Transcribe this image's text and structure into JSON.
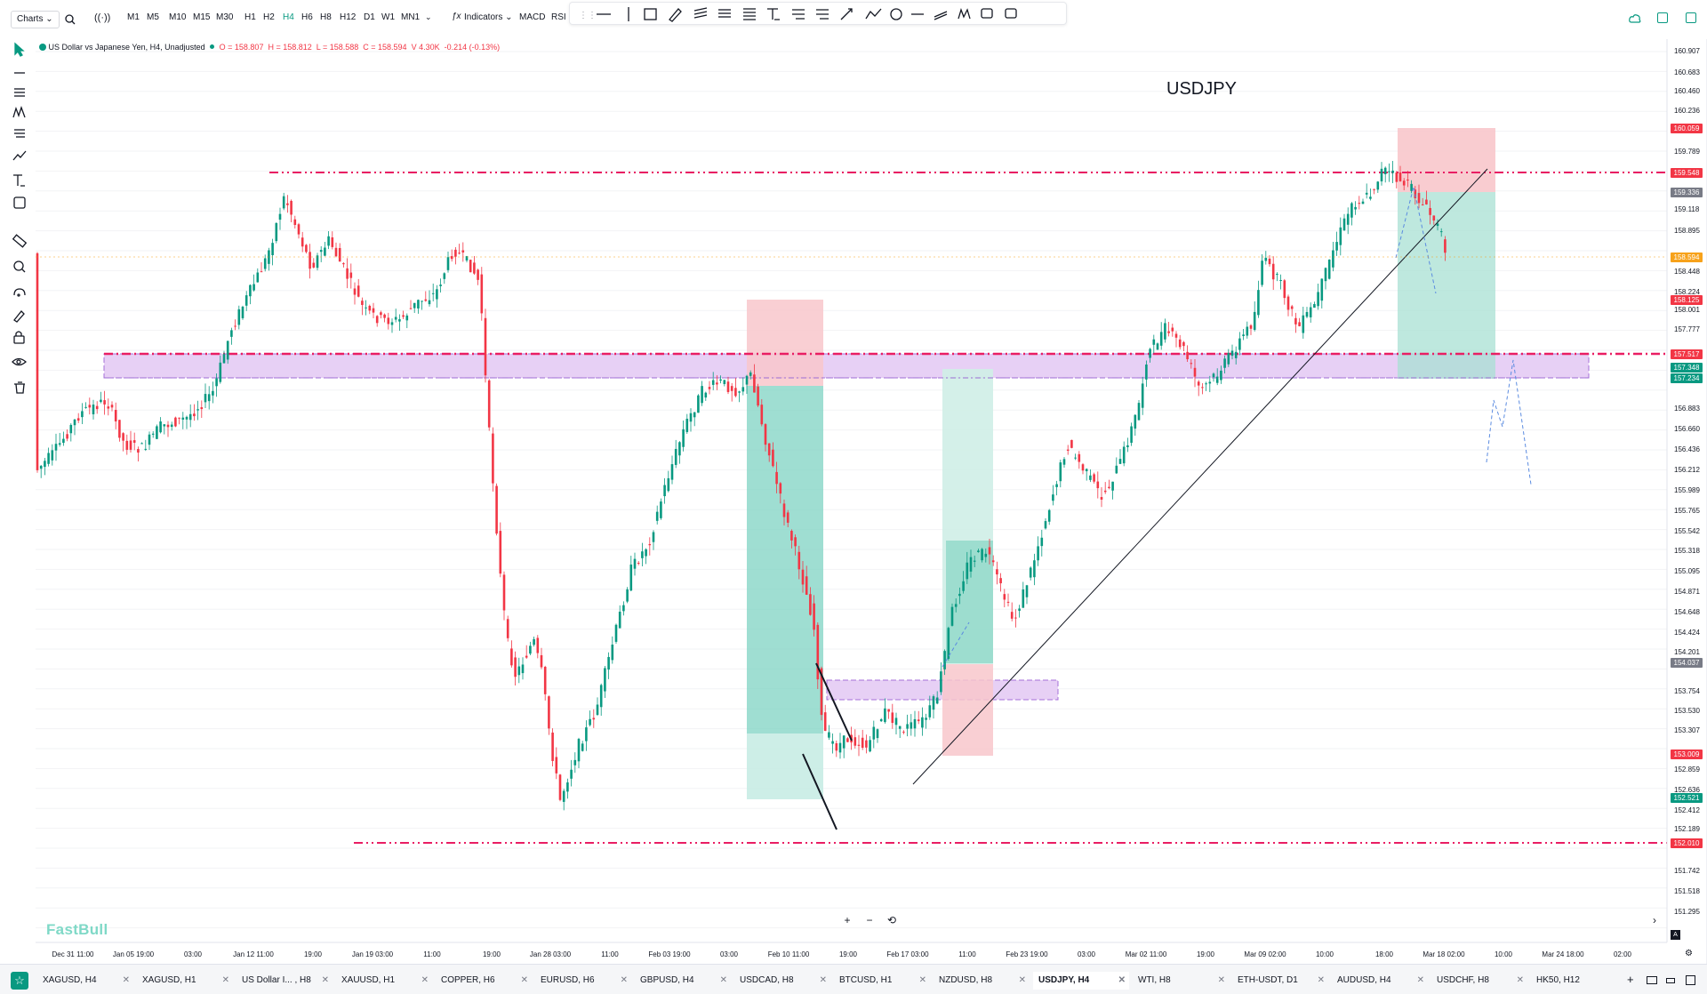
{
  "topbar": {
    "charts_label": "Charts ⌄",
    "timeframes": [
      "M1",
      "M5",
      "M10",
      "M15",
      "M30",
      "H1",
      "H2",
      "H4",
      "H6",
      "H8",
      "H12",
      "D1",
      "W1",
      "MN1"
    ],
    "active_timeframe": "H4",
    "indicators_label": "Indicators ⌄",
    "studies": [
      "MACD",
      "RSI"
    ]
  },
  "legend": {
    "symbol": "US Dollar vs Japanese Yen, H4, Unadjusted",
    "o": "O = 158.807",
    "h": "H = 158.812",
    "l": "L = 158.588",
    "c": "C = 158.594",
    "v": "V 4.30K",
    "chg": "-0.214 (-0.13%)"
  },
  "chart_title": "USDJPY",
  "watermark": "FastBull",
  "price_axis": [
    "160.907",
    "160.683",
    "160.460",
    "160.236",
    "159.789",
    "159.118",
    "158.895",
    "158.448",
    "158.224",
    "158.001",
    "157.777",
    "156.883",
    "156.660",
    "156.436",
    "156.212",
    "155.989",
    "155.765",
    "155.542",
    "155.318",
    "155.095",
    "154.871",
    "154.648",
    "154.424",
    "154.201",
    "153.754",
    "153.530",
    "153.307",
    "152.859",
    "152.636",
    "152.412",
    "152.189",
    "151.742",
    "151.518",
    "151.295"
  ],
  "price_tags": [
    {
      "text": "160.059",
      "color": "#f23645"
    },
    {
      "text": "159.548",
      "color": "#f23645"
    },
    {
      "text": "159.336",
      "color": "#787b86"
    },
    {
      "text": "158.594",
      "color": "#f7a21b"
    },
    {
      "text": "158.125",
      "color": "#f23645"
    },
    {
      "text": "157.517",
      "color": "#f23645"
    },
    {
      "text": "157.348",
      "color": "#089981"
    },
    {
      "text": "157.234",
      "color": "#089981"
    },
    {
      "text": "154.037",
      "color": "#787b86"
    },
    {
      "text": "153.009",
      "color": "#f23645"
    },
    {
      "text": "152.521",
      "color": "#089981"
    },
    {
      "text": "152.010",
      "color": "#f23645"
    }
  ],
  "time_axis": [
    "Dec 31 11:00",
    "Jan 05 19:00",
    "03:00",
    "Jan 12 11:00",
    "19:00",
    "Jan 19 03:00",
    "11:00",
    "19:00",
    "Jan 28 03:00",
    "11:00",
    "Feb 03 19:00",
    "03:00",
    "Feb 10 11:00",
    "19:00",
    "Feb 17 03:00",
    "11:00",
    "Feb 23 19:00",
    "03:00",
    "Mar 02 11:00",
    "19:00",
    "Mar 09 02:00",
    "10:00",
    "18:00",
    "Mar 18 02:00",
    "10:00",
    "Mar 24 18:00",
    "02:00"
  ],
  "bottom_tabs": [
    "XAGUSD, H4",
    "XAGUSD, H1",
    "US Dollar I... , H8",
    "XAUUSD, H1",
    "COPPER, H6",
    "EURUSD, H6",
    "GBPUSD, H4",
    "USDCAD, H8",
    "BTCUSD, H1",
    "NZDUSD, H8",
    "USDJPY, H4",
    "WTI, H8",
    "ETH-USDT, D1",
    "AUDUSD, H4",
    "USDCHF, H8",
    "HK50, H12"
  ],
  "active_tab": "USDJPY, H4",
  "colors": {
    "up": "#089981",
    "down": "#f23645",
    "level": "#e91e63",
    "zone": "#d7b7f0"
  }
}
